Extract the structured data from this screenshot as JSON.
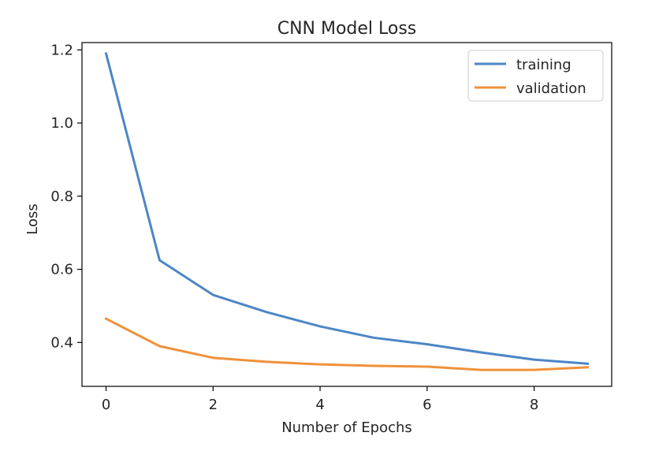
{
  "chart_data": {
    "type": "line",
    "title": "CNN Model Loss",
    "xlabel": "Number of Epochs",
    "ylabel": "Loss",
    "x": [
      0,
      1,
      2,
      3,
      4,
      5,
      6,
      7,
      8,
      9
    ],
    "xlim": [
      -0.45,
      9.45
    ],
    "ylim": [
      0.28,
      1.22
    ],
    "xticks": [
      0,
      2,
      4,
      6,
      8
    ],
    "yticks": [
      0.4,
      0.6,
      0.8,
      1.0,
      1.2
    ],
    "xtick_labels": [
      "0",
      "2",
      "4",
      "6",
      "8"
    ],
    "ytick_labels": [
      "0.4",
      "0.6",
      "0.8",
      "1.0",
      "1.2"
    ],
    "grid": false,
    "legend_position": "top-right",
    "series": [
      {
        "name": "training",
        "color": "#4c86c6",
        "values": [
          1.19,
          0.625,
          0.53,
          0.483,
          0.444,
          0.413,
          0.395,
          0.373,
          0.353,
          0.342
        ]
      },
      {
        "name": "validation",
        "color": "#f0913a",
        "values": [
          0.465,
          0.39,
          0.358,
          0.347,
          0.34,
          0.336,
          0.334,
          0.325,
          0.325,
          0.332
        ]
      }
    ]
  }
}
